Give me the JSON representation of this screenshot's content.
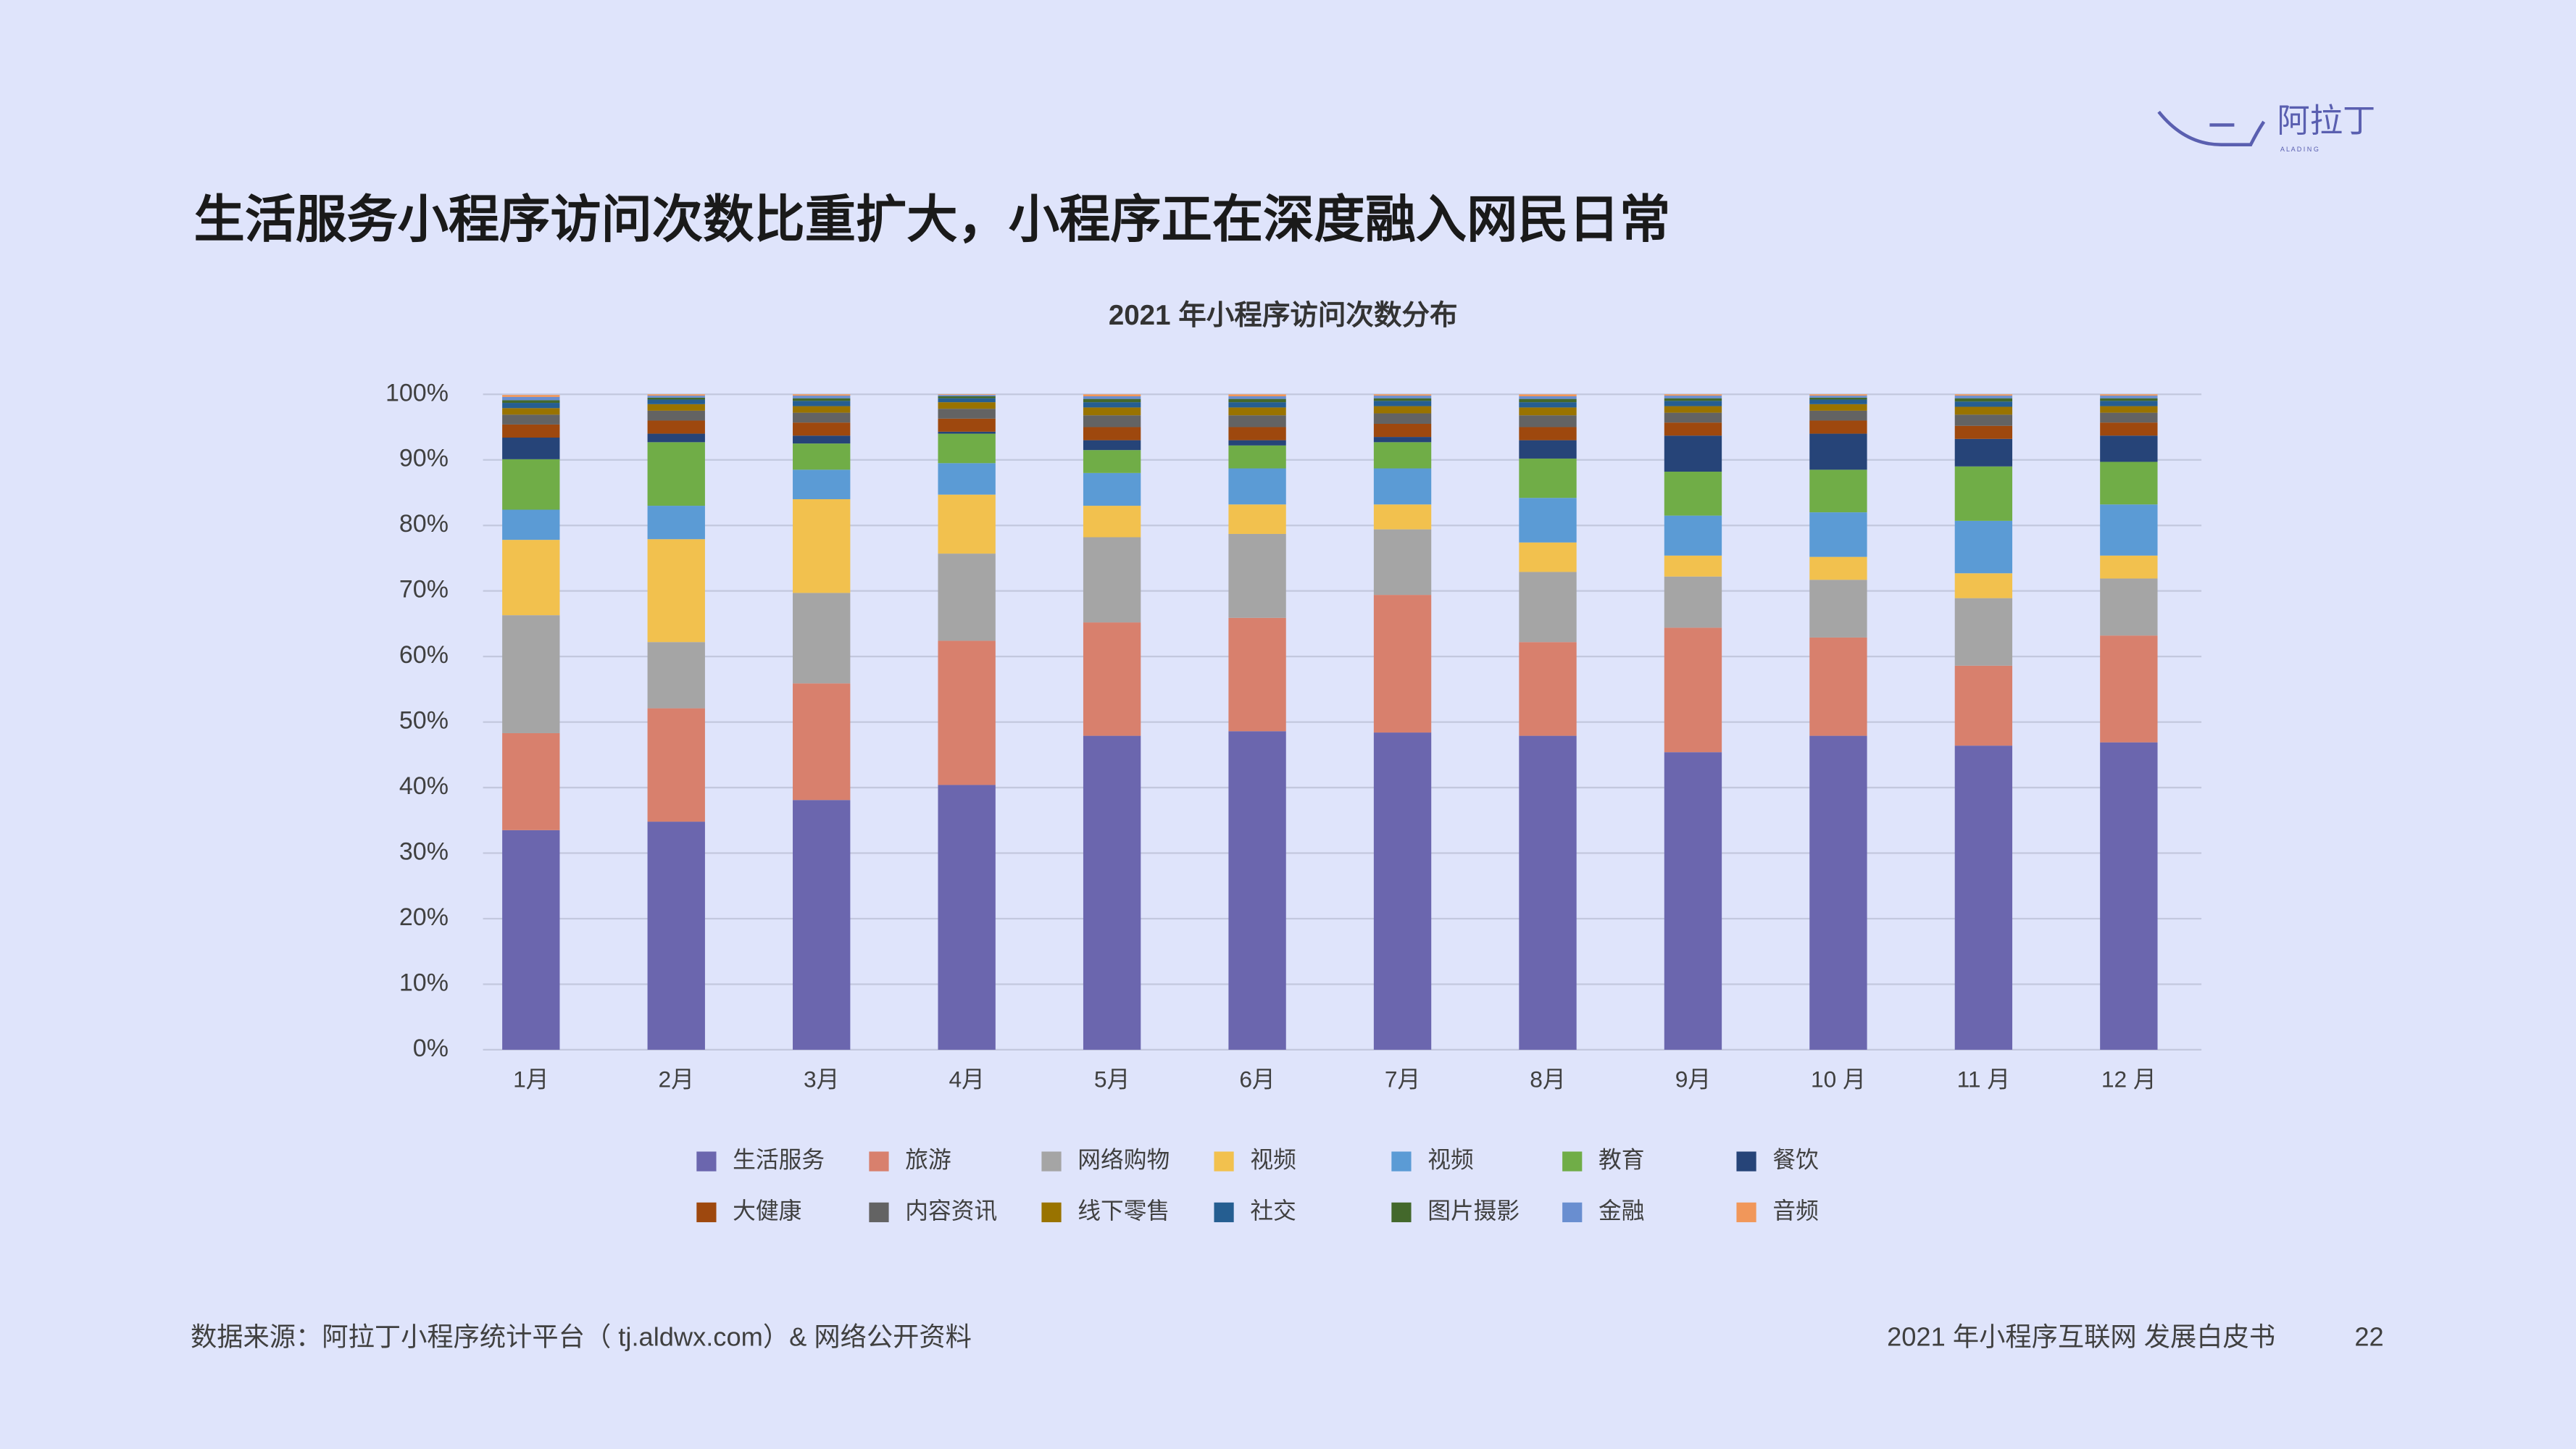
{
  "page": {
    "title": "生活服务小程序访问次数比重扩大，小程序正在深度融入网民日常",
    "source": "数据来源：阿拉丁小程序统计平台（ tj.aldwx.com）& 网络公开资料",
    "footer": "2021 年小程序互联网 发展白皮书",
    "page_number": "22",
    "logo": "阿拉丁",
    "logo_sub": "A L A D I N G"
  },
  "chart_data": {
    "type": "stacked_bar",
    "title": "2021 年小程序访问次数分布",
    "categories": [
      "1月",
      "2月",
      "3月",
      "4月",
      "5月",
      "6月",
      "7月",
      "8月",
      "9月",
      "10 月",
      "11 月",
      "12 月"
    ],
    "ylim": [
      0,
      100
    ],
    "yticks": [
      {
        "value": 0,
        "label": "0%"
      },
      {
        "value": 10,
        "label": "10%"
      },
      {
        "value": 20,
        "label": "20%"
      },
      {
        "value": 30,
        "label": "30%"
      },
      {
        "value": 40,
        "label": "40%"
      },
      {
        "value": 50,
        "label": "50%"
      },
      {
        "value": 60,
        "label": "60%"
      },
      {
        "value": 70,
        "label": "70%"
      },
      {
        "value": 80,
        "label": "80%"
      },
      {
        "value": 90,
        "label": "90%"
      },
      {
        "value": 100,
        "label": "100%"
      }
    ],
    "grid": true,
    "series": [
      {
        "name": "生活服务",
        "color": "#6b66ae",
        "values": [
          33.5,
          34.8,
          38.1,
          40.4,
          47.9,
          48.6,
          48.4,
          47.9,
          45.4,
          47.9,
          46.4,
          46.9
        ]
      },
      {
        "name": "旅游",
        "color": "#d8806d",
        "values": [
          14.8,
          17.3,
          17.8,
          22,
          17.3,
          17.3,
          21,
          14.3,
          19,
          15,
          12.2,
          16.3
        ]
      },
      {
        "name": "网络购物",
        "color": "#a5a5a5",
        "values": [
          18,
          10.1,
          13.8,
          13.3,
          13,
          12.8,
          10,
          10.7,
          7.8,
          8.8,
          10.3,
          8.7
        ]
      },
      {
        "name": "视频",
        "color": "#f2c14e",
        "values": [
          11.5,
          15.7,
          14.3,
          9,
          4.8,
          4.5,
          3.8,
          4.5,
          3.2,
          3.5,
          3.8,
          3.5
        ]
      },
      {
        "name": "视频",
        "color": "#5b9bd5",
        "values": [
          4.6,
          5.1,
          4.5,
          4.8,
          5,
          5.5,
          5.5,
          6.8,
          6.1,
          6.8,
          8,
          7.8
        ]
      },
      {
        "name": "教育",
        "color": "#70ad47",
        "values": [
          7.7,
          9.7,
          4,
          4.5,
          3.5,
          3.5,
          4,
          6,
          6.7,
          6.5,
          8.3,
          6.5
        ]
      },
      {
        "name": "餐饮",
        "color": "#264478",
        "values": [
          3.3,
          1.3,
          1.2,
          0.3,
          1.5,
          0.8,
          0.8,
          2.8,
          5.5,
          5.5,
          4.2,
          4
        ]
      },
      {
        "name": "大健康",
        "color": "#9e480e",
        "values": [
          2,
          2,
          2,
          2,
          2,
          2,
          2,
          2,
          2,
          2,
          2,
          2
        ]
      },
      {
        "name": "内容资讯",
        "color": "#636363",
        "values": [
          1.5,
          1.5,
          1.5,
          1.5,
          1.8,
          1.8,
          1.6,
          1.8,
          1.5,
          1.5,
          1.7,
          1.5
        ]
      },
      {
        "name": "线下零售",
        "color": "#997300",
        "values": [
          1,
          1,
          1,
          1,
          1.2,
          1.2,
          1.1,
          1.2,
          1,
          1,
          1.2,
          1
        ]
      },
      {
        "name": "社交",
        "color": "#255e91",
        "values": [
          0.8,
          0.7,
          0.8,
          0.6,
          0.8,
          0.8,
          0.8,
          0.8,
          0.8,
          0.7,
          0.8,
          0.8
        ]
      },
      {
        "name": "图片摄影",
        "color": "#43682b",
        "values": [
          0.4,
          0.3,
          0.4,
          0.3,
          0.5,
          0.5,
          0.4,
          0.5,
          0.4,
          0.3,
          0.5,
          0.4
        ]
      },
      {
        "name": "金融",
        "color": "#698ed0",
        "values": [
          0.5,
          0.3,
          0.4,
          0.2,
          0.4,
          0.4,
          0.4,
          0.4,
          0.4,
          0.3,
          0.4,
          0.4
        ]
      },
      {
        "name": "音频",
        "color": "#f1975a",
        "values": [
          0.3,
          0.2,
          0.2,
          0.1,
          0.3,
          0.3,
          0.2,
          0.3,
          0.2,
          0.2,
          0.2,
          0.2
        ]
      }
    ]
  }
}
